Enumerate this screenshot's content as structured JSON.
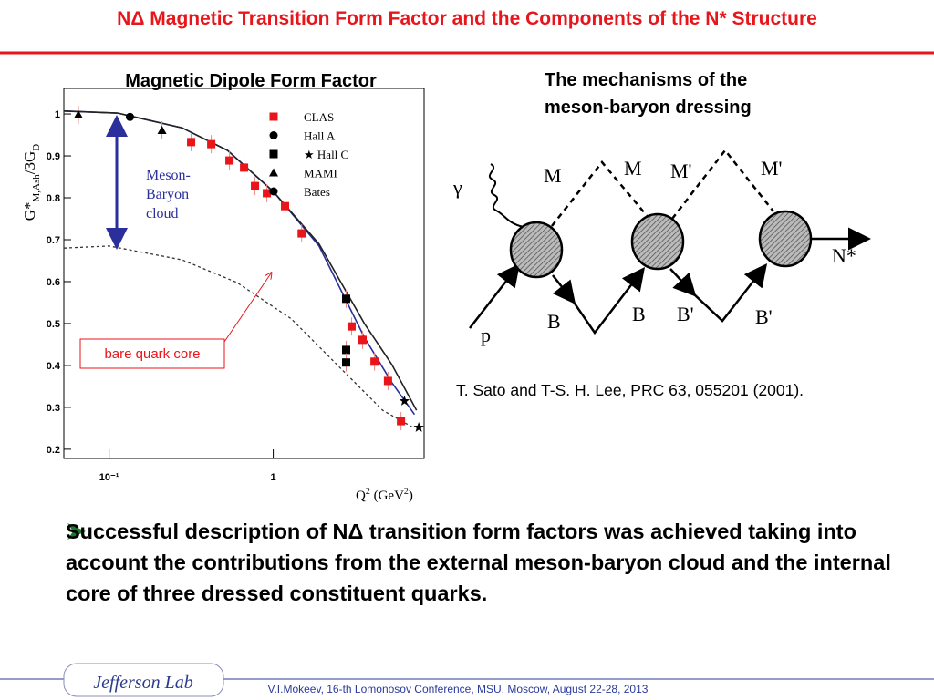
{
  "title": "NΔ Magnetic Transition Form Factor and the Components of the N* Structure",
  "chart_data": {
    "type": "scatter",
    "title": "Magnetic Dipole Form Factor",
    "x_label": [
      "Q",
      "2",
      " (GeV",
      "2",
      ")"
    ],
    "y_label": [
      "G*",
      "M,Ash",
      "/3G",
      "D"
    ],
    "log_x": true,
    "xlim": [
      0.053,
      8.3
    ],
    "xticks": [
      {
        "value": 0.1,
        "label": "10⁻¹"
      },
      1
    ],
    "ylim": [
      0.178,
      1.061
    ],
    "yticks": [
      0.2,
      0.3,
      0.4,
      0.5,
      0.6,
      0.7,
      0.8,
      0.9,
      1
    ],
    "series": [
      {
        "name": "CLAS",
        "color": "#e8151b",
        "marker": "square",
        "x": [
          0.316,
          0.419,
          0.541,
          0.664,
          0.774,
          0.914,
          1.18,
          1.49,
          3.0,
          3.5,
          4.14,
          5.0,
          6.0
        ],
        "values": [
          0.933,
          0.928,
          0.889,
          0.872,
          0.828,
          0.811,
          0.78,
          0.715,
          0.493,
          0.461,
          0.409,
          0.363,
          0.267
        ]
      },
      {
        "name": "Hall A",
        "color": "#000000",
        "marker": "circle",
        "x": [],
        "values": []
      },
      {
        "name": "★ Hall C",
        "color": "#000000",
        "marker": "square",
        "x": [
          2.78,
          2.78,
          2.78
        ],
        "values": [
          0.559,
          0.437,
          0.407
        ]
      },
      {
        "name": "MAMI",
        "color": "#000000",
        "marker": "triangle",
        "x": [
          0.065,
          0.21
        ],
        "values": [
          0.998,
          0.961
        ]
      },
      {
        "name": "Bates",
        "color": "#000000",
        "marker": "circle",
        "x": [
          0.134
        ],
        "values": [
          0.993
        ]
      }
    ],
    "stars": {
      "color": "#000000",
      "x": [
        6.3,
        7.7
      ],
      "values": [
        0.315,
        0.252
      ]
    },
    "curves": [
      {
        "color": "#2a2f9c",
        "dash": false,
        "x": [
          0.053,
          0.113,
          0.278,
          0.527,
          1,
          1.9,
          3.59,
          5.28,
          7.25
        ],
        "values": [
          1.007,
          1.002,
          0.967,
          0.913,
          0.815,
          0.685,
          0.467,
          0.359,
          0.283
        ]
      },
      {
        "color": "#222222",
        "dash": false,
        "x": [
          0.053,
          0.113,
          0.278,
          0.527,
          1,
          1.9,
          3.59,
          5.28,
          7.46
        ],
        "values": [
          1.007,
          1.002,
          0.967,
          0.913,
          0.815,
          0.69,
          0.5,
          0.402,
          0.293
        ]
      },
      {
        "color": "#333333",
        "dash": true,
        "x": [
          0.053,
          0.1,
          0.278,
          0.6,
          1.29,
          2.78,
          4.64,
          7.25
        ],
        "values": [
          0.68,
          0.685,
          0.652,
          0.598,
          0.511,
          0.38,
          0.293,
          0.25
        ]
      }
    ],
    "annotations": {
      "cloud": [
        "Meson-",
        "Baryon",
        "cloud"
      ],
      "core": "bare quark core"
    }
  },
  "diagram": {
    "title": [
      "The mechanisms of the",
      "meson-baryon dressing"
    ],
    "labels": {
      "gamma": "γ",
      "m1": "M",
      "m2": "M",
      "m3": "M'",
      "m4": "M'",
      "nstar": "N*",
      "p": "p",
      "b1": "B",
      "b2": "B",
      "b3": "B'",
      "b4": "B'"
    },
    "citation": "T. Sato and T-S. H. Lee, PRC 63, 055201 (2001)."
  },
  "bullet": "Successful description of NΔ transition form factors was achieved taking into account the contributions from the external meson-baryon cloud and the internal core of three dressed constituent quarks.",
  "footer": {
    "logo": "Jefferson Lab",
    "text": "V.I.Mokeev, 16-th Lomonosov Conference, MSU, Moscow, August 22-28, 2013"
  }
}
